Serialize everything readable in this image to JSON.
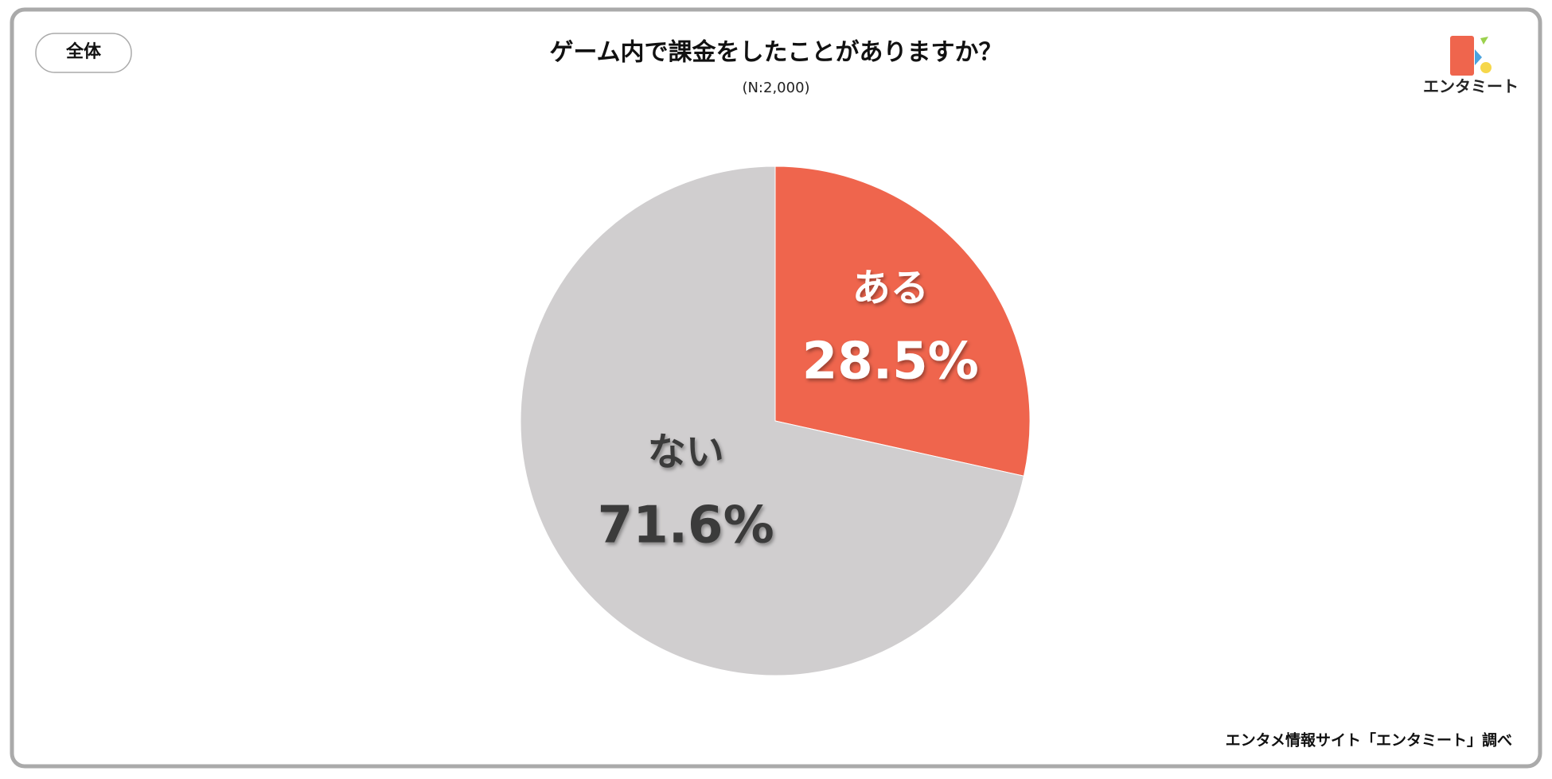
{
  "badge": "全体",
  "logo": "エンタミート",
  "source": "エンタメ情報サイト「エンタミート」調べ",
  "chart_data": {
    "type": "pie",
    "title": "ゲーム内で課金をしたことがありますか？",
    "subtitle": "(N:2,000)",
    "categories": [
      "ある",
      "ない"
    ],
    "values": [
      28.5,
      71.6
    ],
    "value_labels": [
      "28.5%",
      "71.6%"
    ],
    "colors": [
      "#ef654d",
      "#d0cecf"
    ]
  }
}
